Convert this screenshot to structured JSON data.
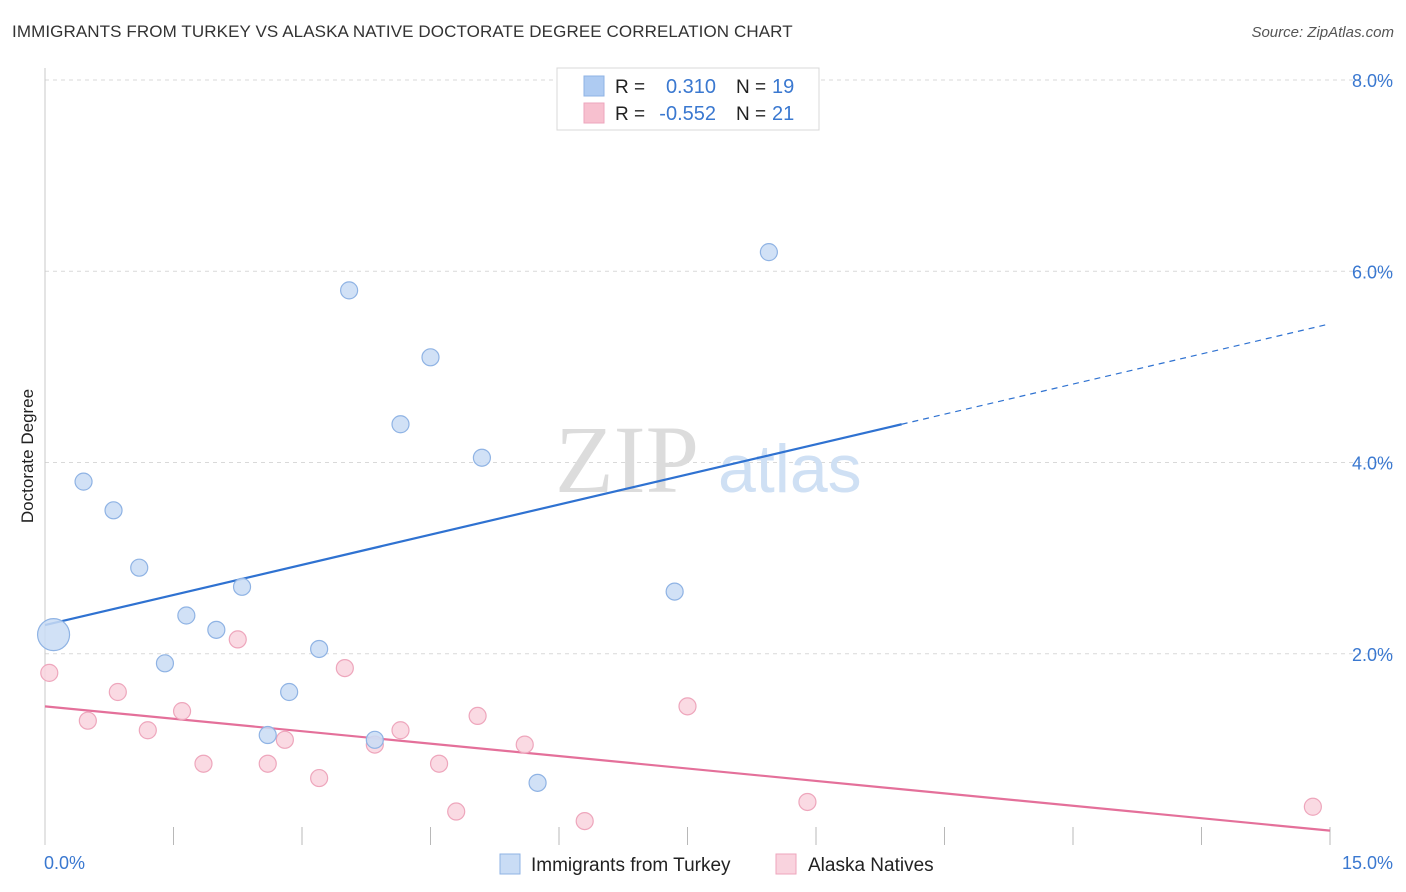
{
  "header": {
    "title": "IMMIGRANTS FROM TURKEY VS ALASKA NATIVE DOCTORATE DEGREE CORRELATION CHART",
    "source": "Source: ZipAtlas.com"
  },
  "watermark": {
    "zip": "ZIP",
    "atlas": "atlas"
  },
  "stats": {
    "r_label": "R =",
    "n_label": "N =",
    "rows": [
      {
        "r": "0.310",
        "n": "19",
        "color": "#aecbf2"
      },
      {
        "r": "-0.552",
        "n": "21",
        "color": "#f7c0cf"
      }
    ]
  },
  "colors": {
    "series_a_fill": "#c9dcf5",
    "series_a_stroke": "#8fb3e4",
    "series_a_line": "#2f72d1",
    "series_b_fill": "#f9d3de",
    "series_b_stroke": "#eea6bc",
    "series_b_line": "#e4709a",
    "accent_text": "#3a78d0",
    "grid": "#d9d9d9"
  },
  "chart_data": {
    "type": "scatter",
    "title": "IMMIGRANTS FROM TURKEY VS ALASKA NATIVE DOCTORATE DEGREE CORRELATION CHART",
    "xlabel": "",
    "ylabel": "Doctorate Degree",
    "xlim": [
      0,
      15
    ],
    "ylim": [
      0,
      8
    ],
    "x_tick_labels": [
      "0.0%",
      "15.0%"
    ],
    "y_ticks": [
      2,
      4,
      6,
      8
    ],
    "y_tick_labels": [
      "2.0%",
      "4.0%",
      "6.0%",
      "8.0%"
    ],
    "grid": true,
    "legend_position": "bottom-center",
    "series": [
      {
        "name": "Immigrants from Turkey",
        "r": 0.31,
        "n": 19,
        "points": [
          {
            "x": 0.1,
            "y": 2.2,
            "size": "large"
          },
          {
            "x": 0.45,
            "y": 3.8
          },
          {
            "x": 0.8,
            "y": 3.5
          },
          {
            "x": 1.1,
            "y": 2.9
          },
          {
            "x": 1.4,
            "y": 1.9
          },
          {
            "x": 1.65,
            "y": 2.4
          },
          {
            "x": 2.0,
            "y": 2.25
          },
          {
            "x": 2.3,
            "y": 2.7
          },
          {
            "x": 2.6,
            "y": 1.15
          },
          {
            "x": 2.85,
            "y": 1.6
          },
          {
            "x": 3.2,
            "y": 2.05
          },
          {
            "x": 3.55,
            "y": 5.8
          },
          {
            "x": 3.85,
            "y": 1.1
          },
          {
            "x": 4.15,
            "y": 4.4
          },
          {
            "x": 4.5,
            "y": 5.1
          },
          {
            "x": 5.1,
            "y": 4.05
          },
          {
            "x": 5.75,
            "y": 0.65
          },
          {
            "x": 7.35,
            "y": 2.65
          },
          {
            "x": 8.45,
            "y": 6.2
          }
        ],
        "trend": {
          "x_start": 0,
          "y_start": 2.3,
          "x_solid_end": 10.0,
          "y_solid_end": 4.4,
          "x_dashed_end": 15.0,
          "y_dashed_end": 5.45
        }
      },
      {
        "name": "Alaska Natives",
        "r": -0.552,
        "n": 21,
        "points": [
          {
            "x": 0.05,
            "y": 1.8
          },
          {
            "x": 0.5,
            "y": 1.3
          },
          {
            "x": 0.85,
            "y": 1.6
          },
          {
            "x": 1.2,
            "y": 1.2
          },
          {
            "x": 1.6,
            "y": 1.4
          },
          {
            "x": 1.85,
            "y": 0.85
          },
          {
            "x": 2.25,
            "y": 2.15
          },
          {
            "x": 2.6,
            "y": 0.85
          },
          {
            "x": 2.8,
            "y": 1.1
          },
          {
            "x": 3.2,
            "y": 0.7
          },
          {
            "x": 3.5,
            "y": 1.85
          },
          {
            "x": 3.85,
            "y": 1.05
          },
          {
            "x": 4.15,
            "y": 1.2
          },
          {
            "x": 4.6,
            "y": 0.85
          },
          {
            "x": 4.8,
            "y": 0.35
          },
          {
            "x": 5.05,
            "y": 1.35
          },
          {
            "x": 5.6,
            "y": 1.05
          },
          {
            "x": 6.3,
            "y": 0.25
          },
          {
            "x": 7.5,
            "y": 1.45
          },
          {
            "x": 8.9,
            "y": 0.45
          },
          {
            "x": 14.8,
            "y": 0.4
          }
        ],
        "trend": {
          "x_start": 0,
          "y_start": 1.45,
          "x_end": 15.0,
          "y_end": 0.15
        }
      }
    ]
  }
}
